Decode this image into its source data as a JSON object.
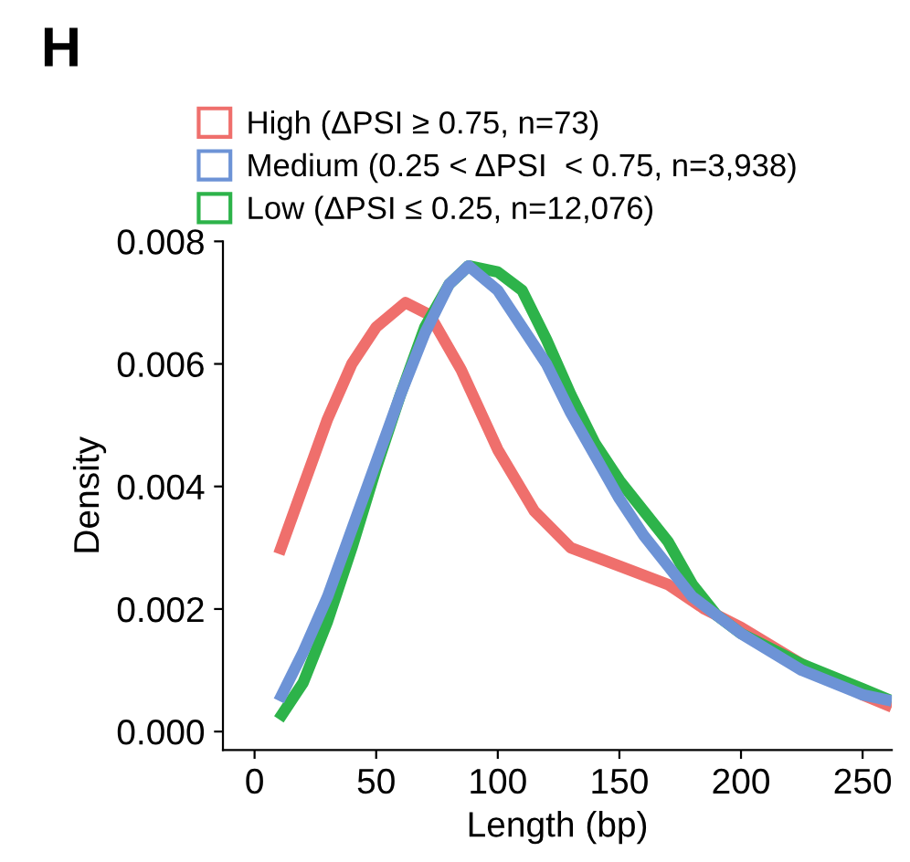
{
  "chart_data": {
    "type": "line",
    "annotations": [
      "H"
    ],
    "xlabel": "Length (bp)",
    "ylabel": "Density",
    "xlim": [
      -13,
      262
    ],
    "xticks": [
      0,
      50,
      100,
      150,
      200,
      250
    ],
    "ylim": [
      -0.0003,
      0.008
    ],
    "yticks": [
      {
        "value": 0,
        "label": "0.000"
      },
      {
        "value": 0.002,
        "label": "0.002"
      },
      {
        "value": 0.004,
        "label": "0.004"
      },
      {
        "value": 0.006,
        "label": "0.006"
      },
      {
        "value": 0.008,
        "label": "0.008"
      }
    ],
    "grid": false,
    "legend": "top",
    "marker": "none",
    "line_style": "solid",
    "series": [
      {
        "name": "High (ΔPSI ≥ 0.75, n=73)",
        "color": "#ef6f6c",
        "x": [
          10,
          20,
          30,
          40,
          50,
          62,
          72,
          85,
          100,
          115,
          130,
          150,
          170,
          185,
          200,
          225,
          250,
          262
        ],
        "values": [
          0.0029,
          0.004,
          0.0051,
          0.006,
          0.0066,
          0.007,
          0.0068,
          0.0059,
          0.0046,
          0.0036,
          0.003,
          0.0027,
          0.0024,
          0.002,
          0.0017,
          0.0011,
          0.0006,
          0.0004
        ]
      },
      {
        "name": "Low (ΔPSI ≤ 0.25, n=12,076)",
        "color": "#2db34a",
        "x": [
          10,
          20,
          30,
          40,
          50,
          60,
          70,
          80,
          88,
          100,
          110,
          120,
          130,
          140,
          150,
          160,
          170,
          180,
          190,
          200,
          225,
          250,
          262
        ],
        "values": [
          0.0002,
          0.0008,
          0.0018,
          0.003,
          0.0043,
          0.0055,
          0.0066,
          0.0073,
          0.0076,
          0.0075,
          0.0072,
          0.0064,
          0.0055,
          0.0047,
          0.0041,
          0.0036,
          0.0031,
          0.0024,
          0.0019,
          0.0016,
          0.0011,
          0.0007,
          0.0005
        ]
      },
      {
        "name": "Medium (0.25 < ΔPSI  < 0.75, n=3,938)",
        "color": "#6d93d6",
        "x": [
          10,
          20,
          30,
          40,
          50,
          60,
          70,
          80,
          88,
          100,
          110,
          120,
          130,
          140,
          150,
          160,
          170,
          180,
          190,
          200,
          225,
          250,
          262
        ],
        "values": [
          0.0005,
          0.0013,
          0.0022,
          0.0033,
          0.0044,
          0.0055,
          0.0065,
          0.0073,
          0.0076,
          0.0072,
          0.0066,
          0.006,
          0.0052,
          0.0045,
          0.0038,
          0.0032,
          0.0027,
          0.0022,
          0.0019,
          0.0016,
          0.001,
          0.0006,
          0.0005
        ]
      }
    ]
  }
}
